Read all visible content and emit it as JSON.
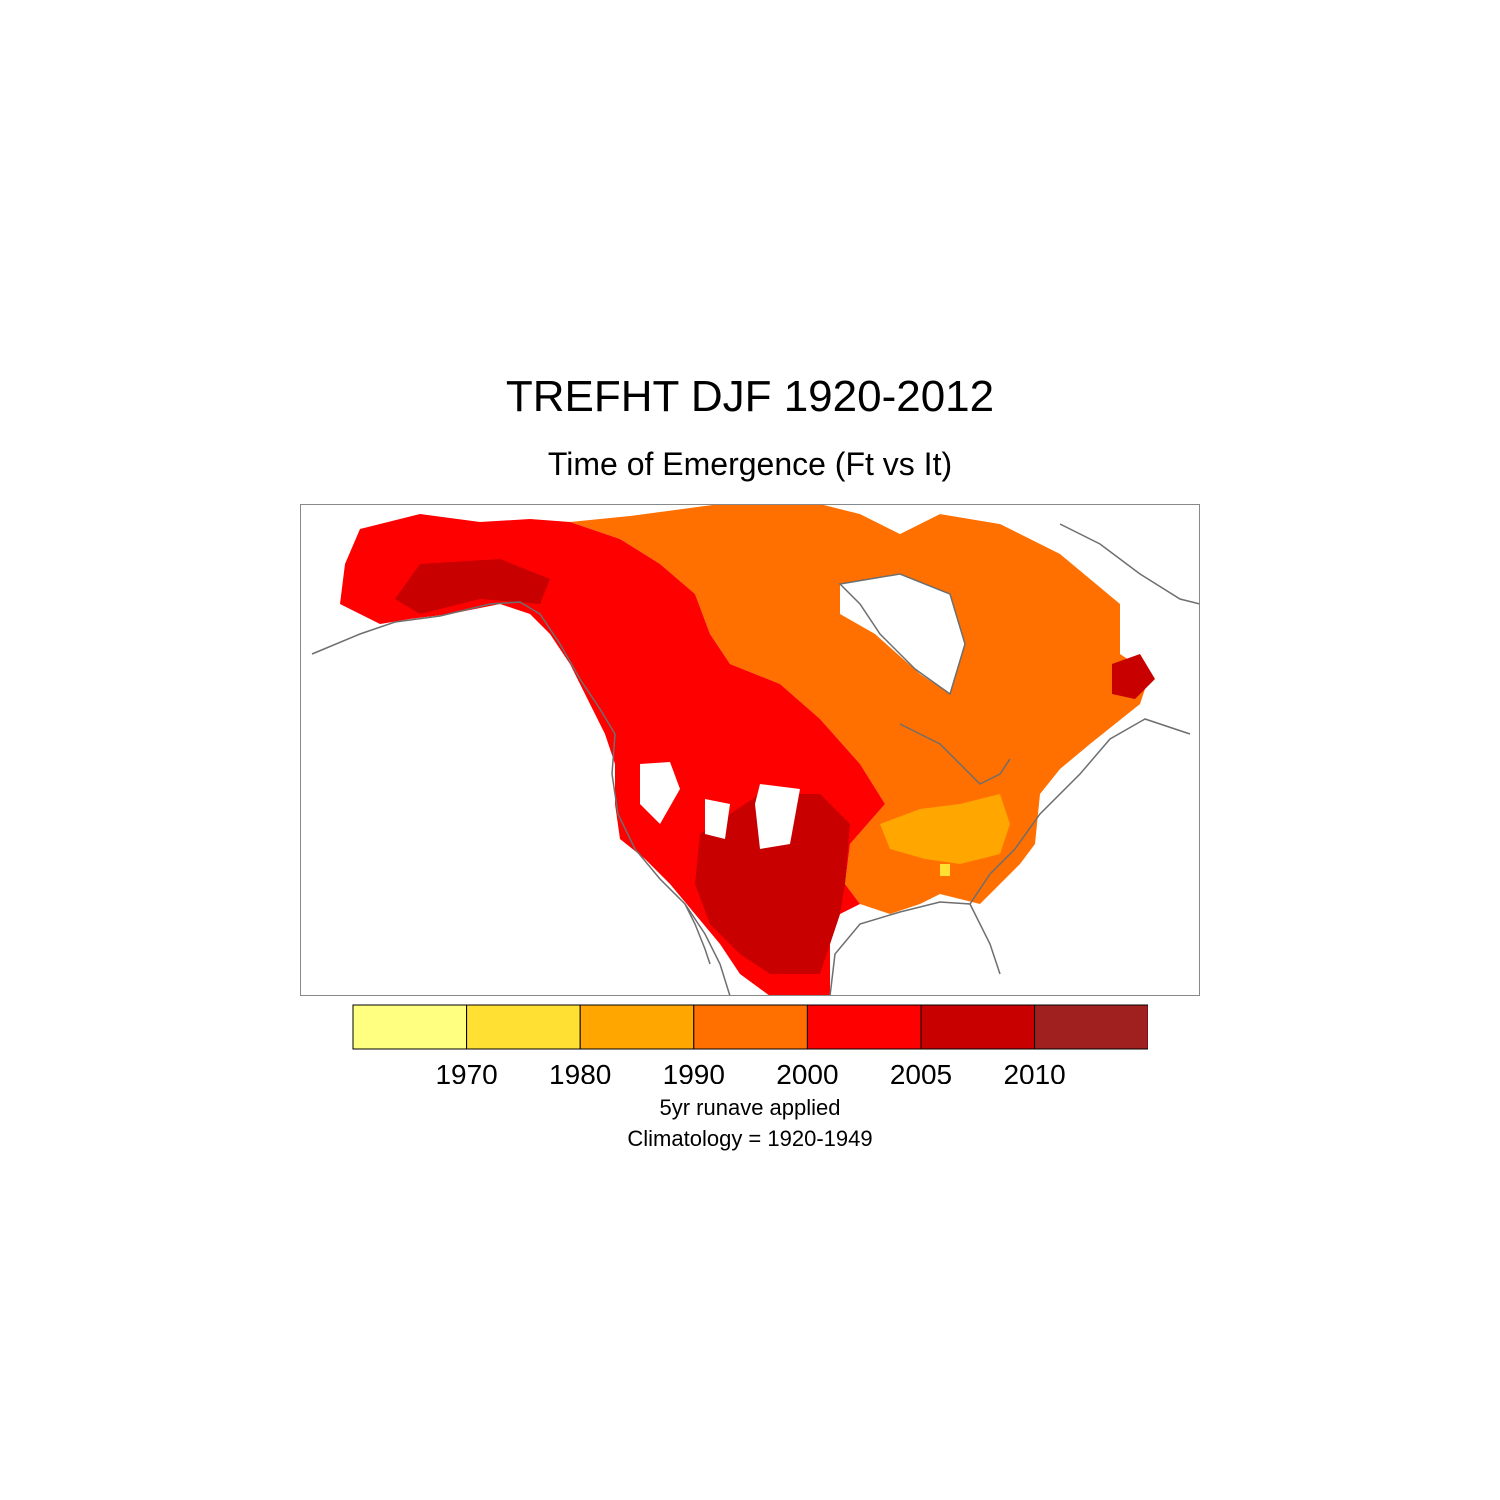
{
  "title": "TREFHT DJF 1920-2012",
  "subtitle": "Time of Emergence (Ft vs It)",
  "notes": {
    "line1": "5yr runave applied",
    "line2": "Climatology = 1920-1949"
  },
  "colorbar": {
    "colors": [
      "#ffff80",
      "#ffe033",
      "#ffa600",
      "#ff7000",
      "#ff0000",
      "#c80000",
      "#a02020"
    ],
    "labels": [
      "1970",
      "1980",
      "1990",
      "2000",
      "2005",
      "2010"
    ]
  },
  "map": {
    "region": "North America",
    "background": "#ffffff",
    "coastline_color": "#6e6e6e",
    "dominant_bins": [
      {
        "area": "Alaska / western Canada / Pacific coast",
        "color": "#ff0000"
      },
      {
        "area": "Central and eastern Canada",
        "color": "#ff7000"
      },
      {
        "area": "Interior western US / Mexico",
        "color": "#c80000"
      },
      {
        "area": "Eastern US (Ohio Valley)",
        "color": "#ffa600"
      }
    ]
  }
}
